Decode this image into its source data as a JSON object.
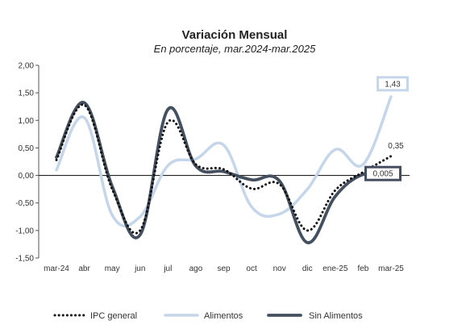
{
  "chart_data": {
    "type": "line",
    "title": "Variación Mensual",
    "subtitle": "En porcentaje, mar.2024-mar.2025",
    "xlabel": "",
    "ylabel": "",
    "categories": [
      "mar-24",
      "abr",
      "may",
      "jun",
      "jul",
      "ago",
      "sep",
      "oct",
      "nov",
      "dic",
      "ene-25",
      "feb",
      "mar-25"
    ],
    "yticks": [
      "2,00",
      "1,50",
      "1,00",
      "0,50",
      "0,00",
      "-0,50",
      "-1,00",
      "-1,50"
    ],
    "ylim": [
      -1.5,
      2.0
    ],
    "grid": false,
    "legend_position": "bottom",
    "series": [
      {
        "name": "IPC general",
        "style": "dotted",
        "color": "#111111",
        "values": [
          0.28,
          1.28,
          -0.25,
          -1.0,
          0.97,
          0.2,
          0.11,
          -0.24,
          -0.16,
          -1.0,
          -0.27,
          0.06,
          0.35
        ]
      },
      {
        "name": "Alimentos",
        "style": "solid",
        "color": "#c5d6ea",
        "values": [
          0.1,
          1.05,
          -0.72,
          -0.75,
          0.18,
          0.3,
          0.55,
          -0.57,
          -0.7,
          -0.25,
          0.47,
          0.2,
          1.43
        ]
      },
      {
        "name": "Sin Alimentos",
        "style": "solid",
        "color": "#44505f",
        "values": [
          0.33,
          1.32,
          -0.2,
          -1.08,
          1.2,
          0.17,
          0.07,
          -0.08,
          -0.1,
          -1.22,
          -0.38,
          0.02,
          0.005
        ]
      }
    ],
    "annotations": [
      {
        "text": "1,43",
        "series": "Alimentos",
        "boxed": true
      },
      {
        "text": "0,35",
        "series": "IPC general",
        "boxed": false
      },
      {
        "text": "0,005",
        "series": "Sin Alimentos",
        "boxed": true
      }
    ]
  }
}
